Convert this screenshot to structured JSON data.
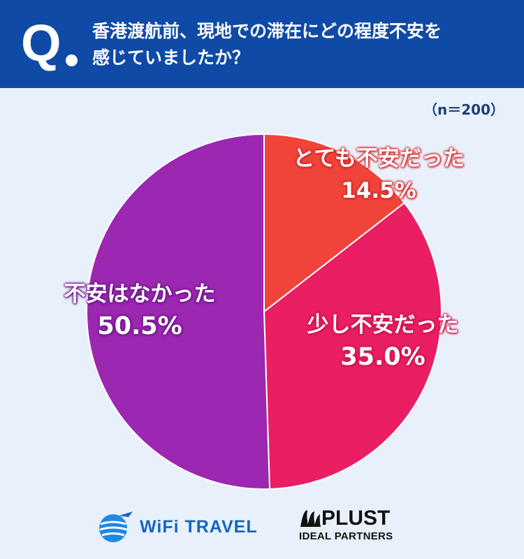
{
  "header": {
    "q_mark": "Q",
    "question_line1": "香港渡航前、現地での滞在にどの程度不安を",
    "question_line2": "感じていましたか？",
    "background": "#0f4aa6"
  },
  "sample_size": "（n＝200）",
  "chart_data": {
    "type": "pie",
    "categories": [
      "とても不安だった",
      "少し不安だった",
      "不安はなかった"
    ],
    "values": [
      14.5,
      35.0,
      50.5
    ],
    "value_labels": [
      "14.5%",
      "35.0%",
      "50.5%"
    ],
    "colors": [
      "#f0443a",
      "#e91e63",
      "#9c27b0"
    ],
    "start": "12 o'clock, clockwise",
    "legend": "none"
  },
  "logos": {
    "wifi_travel": "WiFi TRAVEL",
    "plust_name": "PLUST",
    "plust_sub": "IDEAL PARTNERS"
  },
  "icons": [
    "globe-plane-icon",
    "plust-wave-icon"
  ]
}
